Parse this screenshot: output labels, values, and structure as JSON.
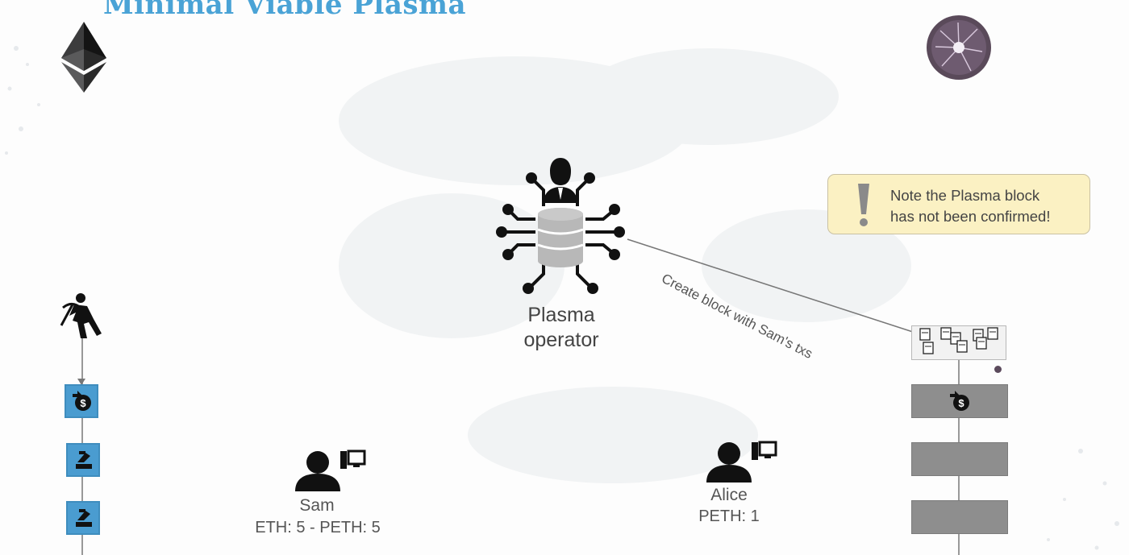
{
  "slide": {
    "title": "Minimal Viable Plasma",
    "accent_color": "#4aa3d6"
  },
  "logos": {
    "ethereum": "ethereum-diamond-icon",
    "plasma": "plasma-orb-icon"
  },
  "operator": {
    "label_line1": "Plasma",
    "label_line2": "operator",
    "icon": "database-circuit-person-icon"
  },
  "arrow": {
    "label": "Create block with Sam's txs"
  },
  "note": {
    "line1": "Note the Plasma block",
    "line2": "has not been confirmed!",
    "icon": "exclamation-icon",
    "background": "#fbf1c3"
  },
  "main_chain": {
    "miner_icon": "miner-icon",
    "blocks": [
      {
        "icon": "deposit-coin-icon"
      },
      {
        "icon": "contract-hand-icon"
      },
      {
        "icon": "contract-hand-icon"
      }
    ],
    "block_color": "#4a9cd0"
  },
  "users": [
    {
      "name": "Sam",
      "balance": "ETH: 5 - PETH: 5"
    },
    {
      "name": "Alice",
      "balance": "PETH: 1"
    }
  ],
  "plasma_chain": {
    "pending_block_icon": "transactions-stack-icon",
    "blocks": [
      {
        "icon": "deposit-coin-icon"
      },
      {
        "icon": ""
      },
      {
        "icon": ""
      }
    ],
    "block_color": "#8e8e8e"
  }
}
